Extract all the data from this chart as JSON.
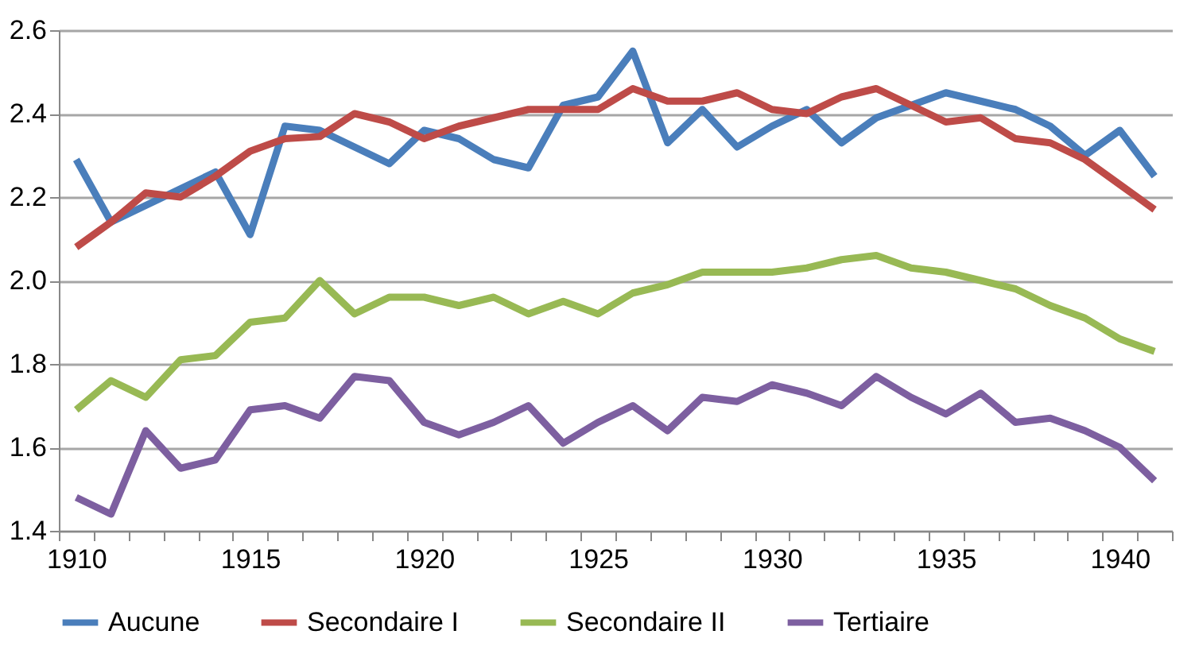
{
  "chart_data": {
    "type": "line",
    "categories": [
      "1910",
      null,
      null,
      null,
      null,
      "1915",
      null,
      null,
      null,
      null,
      "1920",
      null,
      null,
      null,
      null,
      "1925",
      null,
      null,
      null,
      null,
      "1930",
      null,
      null,
      null,
      null,
      "1935",
      null,
      null,
      null,
      null,
      "1940",
      null
    ],
    "ylim": [
      1.4,
      2.6
    ],
    "yticks": [
      1.4,
      1.6,
      1.8,
      {
        "value": 2.0,
        "label": "2.0"
      },
      2.2,
      2.4,
      2.6
    ],
    "grid": "y",
    "legend": "bottom",
    "line_style": "solid",
    "marker": "none",
    "series": [
      {
        "name": "Aucune",
        "color": "#4a7ebb",
        "values": [
          2.29,
          2.14,
          2.18,
          2.22,
          2.26,
          2.11,
          2.37,
          2.36,
          2.32,
          2.28,
          2.36,
          2.34,
          2.29,
          2.27,
          2.42,
          2.44,
          2.55,
          2.33,
          2.41,
          2.32,
          2.37,
          2.41,
          2.33,
          2.39,
          2.42,
          2.45,
          2.43,
          2.41,
          2.37,
          2.3,
          2.36,
          2.25
        ]
      },
      {
        "name": "Secondaire I",
        "color": "#be4b48",
        "values": [
          2.08,
          2.14,
          2.21,
          2.2,
          2.25,
          2.31,
          2.34,
          2.345,
          2.4,
          2.38,
          2.34,
          2.37,
          2.39,
          2.41,
          2.41,
          2.41,
          2.46,
          2.43,
          2.43,
          2.45,
          2.41,
          2.4,
          2.44,
          2.46,
          2.42,
          2.38,
          2.39,
          2.34,
          2.33,
          2.29,
          2.23,
          2.17
        ]
      },
      {
        "name": "Secondaire II",
        "color": "#98b954",
        "values": [
          1.69,
          1.76,
          1.72,
          1.81,
          1.82,
          1.9,
          1.91,
          2.0,
          1.92,
          1.96,
          1.96,
          1.94,
          1.96,
          1.92,
          1.95,
          1.92,
          1.97,
          1.99,
          2.02,
          2.02,
          2.02,
          2.03,
          2.05,
          2.06,
          2.03,
          2.02,
          2.0,
          1.98,
          1.94,
          1.91,
          1.86,
          1.83
        ]
      },
      {
        "name": "Tertiaire",
        "color": "#7d5fa0",
        "values": [
          1.48,
          1.44,
          1.64,
          1.55,
          1.57,
          1.69,
          1.7,
          1.67,
          1.77,
          1.76,
          1.66,
          1.63,
          1.66,
          1.7,
          1.61,
          1.66,
          1.7,
          1.64,
          1.72,
          1.71,
          1.75,
          1.73,
          1.7,
          1.77,
          1.72,
          1.68,
          1.73,
          1.66,
          1.67,
          1.64,
          1.6,
          1.52
        ]
      }
    ]
  }
}
